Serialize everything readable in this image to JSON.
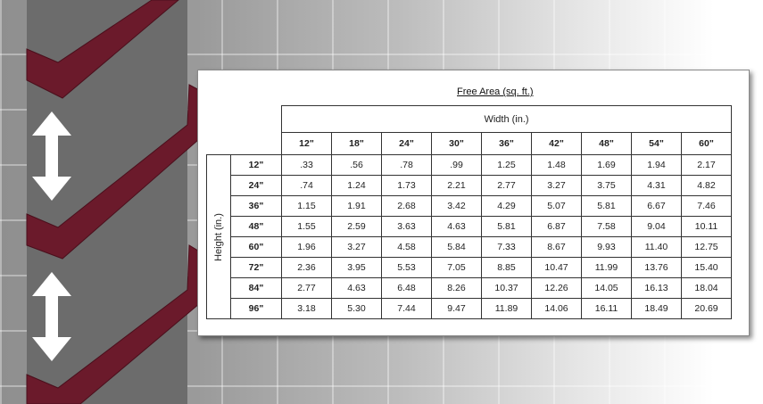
{
  "title": "Free Area (sq. ft.)",
  "width_label": "Width (in.)",
  "height_label": "Height (in.)",
  "columns": [
    "12\"",
    "18\"",
    "24\"",
    "30\"",
    "36\"",
    "42\"",
    "48\"",
    "54\"",
    "60\""
  ],
  "rows": [
    {
      "height": "12\"",
      "values": [
        ".33",
        ".56",
        ".78",
        ".99",
        "1.25",
        "1.48",
        "1.69",
        "1.94",
        "2.17"
      ]
    },
    {
      "height": "24\"",
      "values": [
        ".74",
        "1.24",
        "1.73",
        "2.21",
        "2.77",
        "3.27",
        "3.75",
        "4.31",
        "4.82"
      ]
    },
    {
      "height": "36\"",
      "values": [
        "1.15",
        "1.91",
        "2.68",
        "3.42",
        "4.29",
        "5.07",
        "5.81",
        "6.67",
        "7.46"
      ]
    },
    {
      "height": "48\"",
      "values": [
        "1.55",
        "2.59",
        "3.63",
        "4.63",
        "5.81",
        "6.87",
        "7.58",
        "9.04",
        "10.11"
      ]
    },
    {
      "height": "60\"",
      "values": [
        "1.96",
        "3.27",
        "4.58",
        "5.84",
        "7.33",
        "8.67",
        "9.93",
        "11.40",
        "12.75"
      ]
    },
    {
      "height": "72\"",
      "values": [
        "2.36",
        "3.95",
        "5.53",
        "7.05",
        "8.85",
        "10.47",
        "11.99",
        "13.76",
        "15.40"
      ]
    },
    {
      "height": "84\"",
      "values": [
        "2.77",
        "4.63",
        "6.48",
        "8.26",
        "10.37",
        "12.26",
        "14.05",
        "16.13",
        "18.04"
      ]
    },
    {
      "height": "96\"",
      "values": [
        "3.18",
        "5.30",
        "7.44",
        "9.47",
        "11.89",
        "14.06",
        "16.11",
        "18.49",
        "20.69"
      ]
    }
  ],
  "colors": {
    "louver": "#6b1a2b",
    "arrow": "#ffffff"
  }
}
